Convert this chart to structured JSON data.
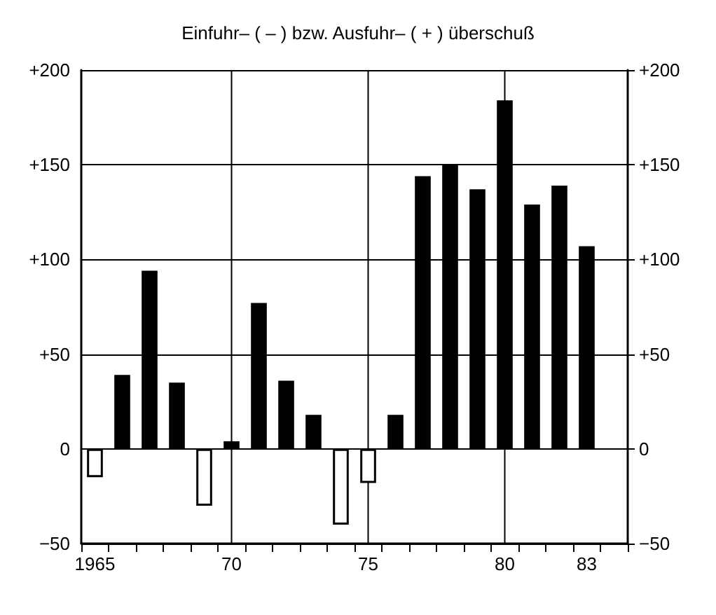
{
  "chart_data": {
    "type": "bar",
    "title": "Einfuhr– ( – ) bzw. Ausfuhr– ( + ) überschuß",
    "categories": [
      "1965",
      null,
      null,
      null,
      null,
      "70",
      null,
      null,
      null,
      null,
      "75",
      null,
      null,
      null,
      null,
      "80",
      null,
      null,
      "83",
      null
    ],
    "values": [
      -15,
      39,
      94,
      35,
      -30,
      4,
      77,
      36,
      18,
      -40,
      -18,
      18,
      144,
      150,
      137,
      184,
      129,
      139,
      107,
      null
    ],
    "colors": [
      "#ffffff",
      "#000000",
      "#000000",
      "#000000",
      "#ffffff",
      "#000000",
      "#000000",
      "#000000",
      "#000000",
      "#ffffff",
      "#ffffff",
      "#000000",
      "#000000",
      "#000000",
      "#000000",
      "#000000",
      "#000000",
      "#000000",
      "#000000",
      "#000000"
    ],
    "ylim": [
      -50,
      200
    ],
    "yticks": [
      {
        "value": -50,
        "label": "−50"
      },
      0,
      {
        "value": 50,
        "label": "+50"
      },
      {
        "value": 100,
        "label": "+100"
      },
      {
        "value": 150,
        "label": "+150"
      },
      {
        "value": 200,
        "label": "+200"
      }
    ],
    "y2lim": [
      -50,
      200
    ],
    "y2ticks": [
      {
        "value": -50,
        "label": "−50"
      },
      0,
      {
        "value": 50,
        "label": "+50"
      },
      {
        "value": 100,
        "label": "+100"
      },
      {
        "value": 150,
        "label": "+150"
      },
      {
        "value": 200,
        "label": "+200"
      }
    ],
    "grid": "y",
    "ref_lines": [
      {
        "axis": "x",
        "value": "70"
      },
      {
        "axis": "x",
        "value": "75"
      },
      {
        "axis": "x",
        "value": "80"
      }
    ]
  }
}
